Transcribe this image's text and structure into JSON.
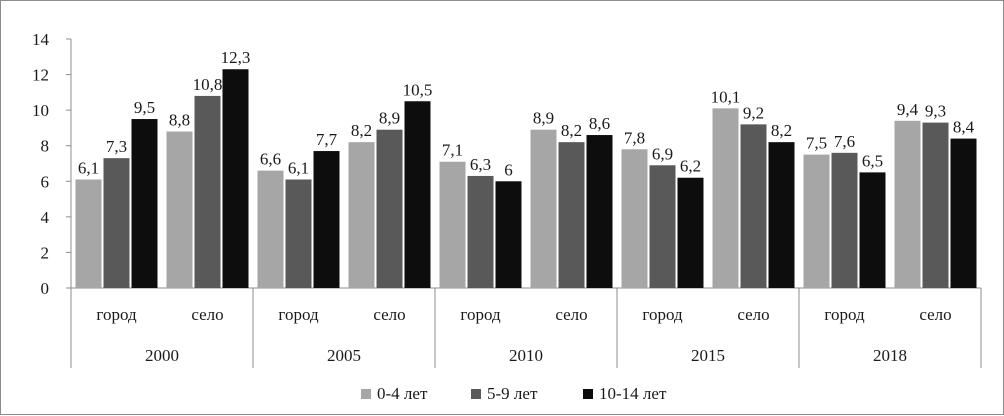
{
  "chart_data": {
    "type": "bar",
    "title": "",
    "xlabel": "",
    "ylabel": "",
    "ylim": [
      0,
      14
    ],
    "yticks": [
      "0",
      "2",
      "4",
      "6",
      "8",
      "10",
      "12",
      "14"
    ],
    "grid": false,
    "legend_position": "bottom",
    "groups": [
      "2000",
      "2005",
      "2010",
      "2015",
      "2018"
    ],
    "subcategories": [
      "город",
      "село"
    ],
    "categories": [
      "2000 город",
      "2000 село",
      "2005 город",
      "2005 село",
      "2010 город",
      "2010 село",
      "2015 город",
      "2015 село",
      "2018 город",
      "2018 село"
    ],
    "series": [
      {
        "name": "0-4 лет",
        "color": "#a6a6a6",
        "values": [
          6.1,
          8.8,
          6.6,
          8.2,
          7.1,
          8.9,
          7.8,
          10.1,
          7.5,
          9.4
        ],
        "labels": [
          "6,1",
          "8,8",
          "6,6",
          "8,2",
          "7,1",
          "8,9",
          "7,8",
          "10,1",
          "7,5",
          "9,4"
        ]
      },
      {
        "name": "5-9 лет",
        "color": "#595959",
        "values": [
          7.3,
          10.8,
          6.1,
          8.9,
          6.3,
          8.2,
          6.9,
          9.2,
          7.6,
          9.3
        ],
        "labels": [
          "7,3",
          "10,8",
          "6,1",
          "8,9",
          "6,3",
          "8,2",
          "6,9",
          "9,2",
          "7,6",
          "9,3"
        ]
      },
      {
        "name": "10-14 лет",
        "color": "#0d0d0d",
        "values": [
          9.5,
          12.3,
          7.7,
          10.5,
          6,
          8.6,
          6.2,
          8.2,
          6.5,
          8.4
        ],
        "labels": [
          "9,5",
          "12,3",
          "7,7",
          "10,5",
          "6",
          "8,6",
          "6,2",
          "8,2",
          "6,5",
          "8,4"
        ]
      }
    ]
  }
}
